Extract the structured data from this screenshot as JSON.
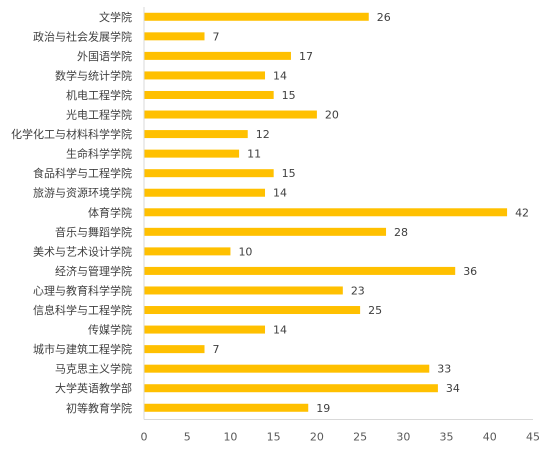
{
  "chart_data": {
    "type": "bar",
    "orientation": "horizontal",
    "categories": [
      "文学院",
      "政治与社会发展学院",
      "外国语学院",
      "数学与统计学院",
      "机电工程学院",
      "光电工程学院",
      "化学化工与材料科学学院",
      "生命科学学院",
      "食品科学与工程学院",
      "旅游与资源环境学院",
      "体育学院",
      "音乐与舞蹈学院",
      "美术与艺术设计学院",
      "经济与管理学院",
      "心理与教育科学学院",
      "信息科学与工程学院",
      "传媒学院",
      "城市与建筑工程学院",
      "马克思主义学院",
      "大学英语教学部",
      "初等教育学院"
    ],
    "values": [
      26,
      7,
      17,
      14,
      15,
      20,
      12,
      11,
      15,
      14,
      42,
      28,
      10,
      36,
      23,
      25,
      14,
      7,
      33,
      34,
      19
    ],
    "value_labels": [
      "26",
      "7",
      "17",
      "14",
      "15",
      "20",
      "12",
      "11",
      "15",
      "14",
      "42",
      "28",
      "10",
      "36",
      "23",
      "25",
      "14",
      "7",
      "33",
      "34",
      "19"
    ],
    "xlim": [
      0,
      45
    ],
    "x_ticks": [
      0,
      5,
      10,
      15,
      20,
      25,
      30,
      35,
      40,
      45
    ],
    "x_tick_labels": [
      "0",
      "5",
      "10",
      "15",
      "20",
      "25",
      "30",
      "35",
      "40",
      "45"
    ],
    "grid": false,
    "legend": "none",
    "colors": {
      "bar": "#FFC000",
      "axis": "#D9D9D9",
      "text": "#404040"
    }
  }
}
